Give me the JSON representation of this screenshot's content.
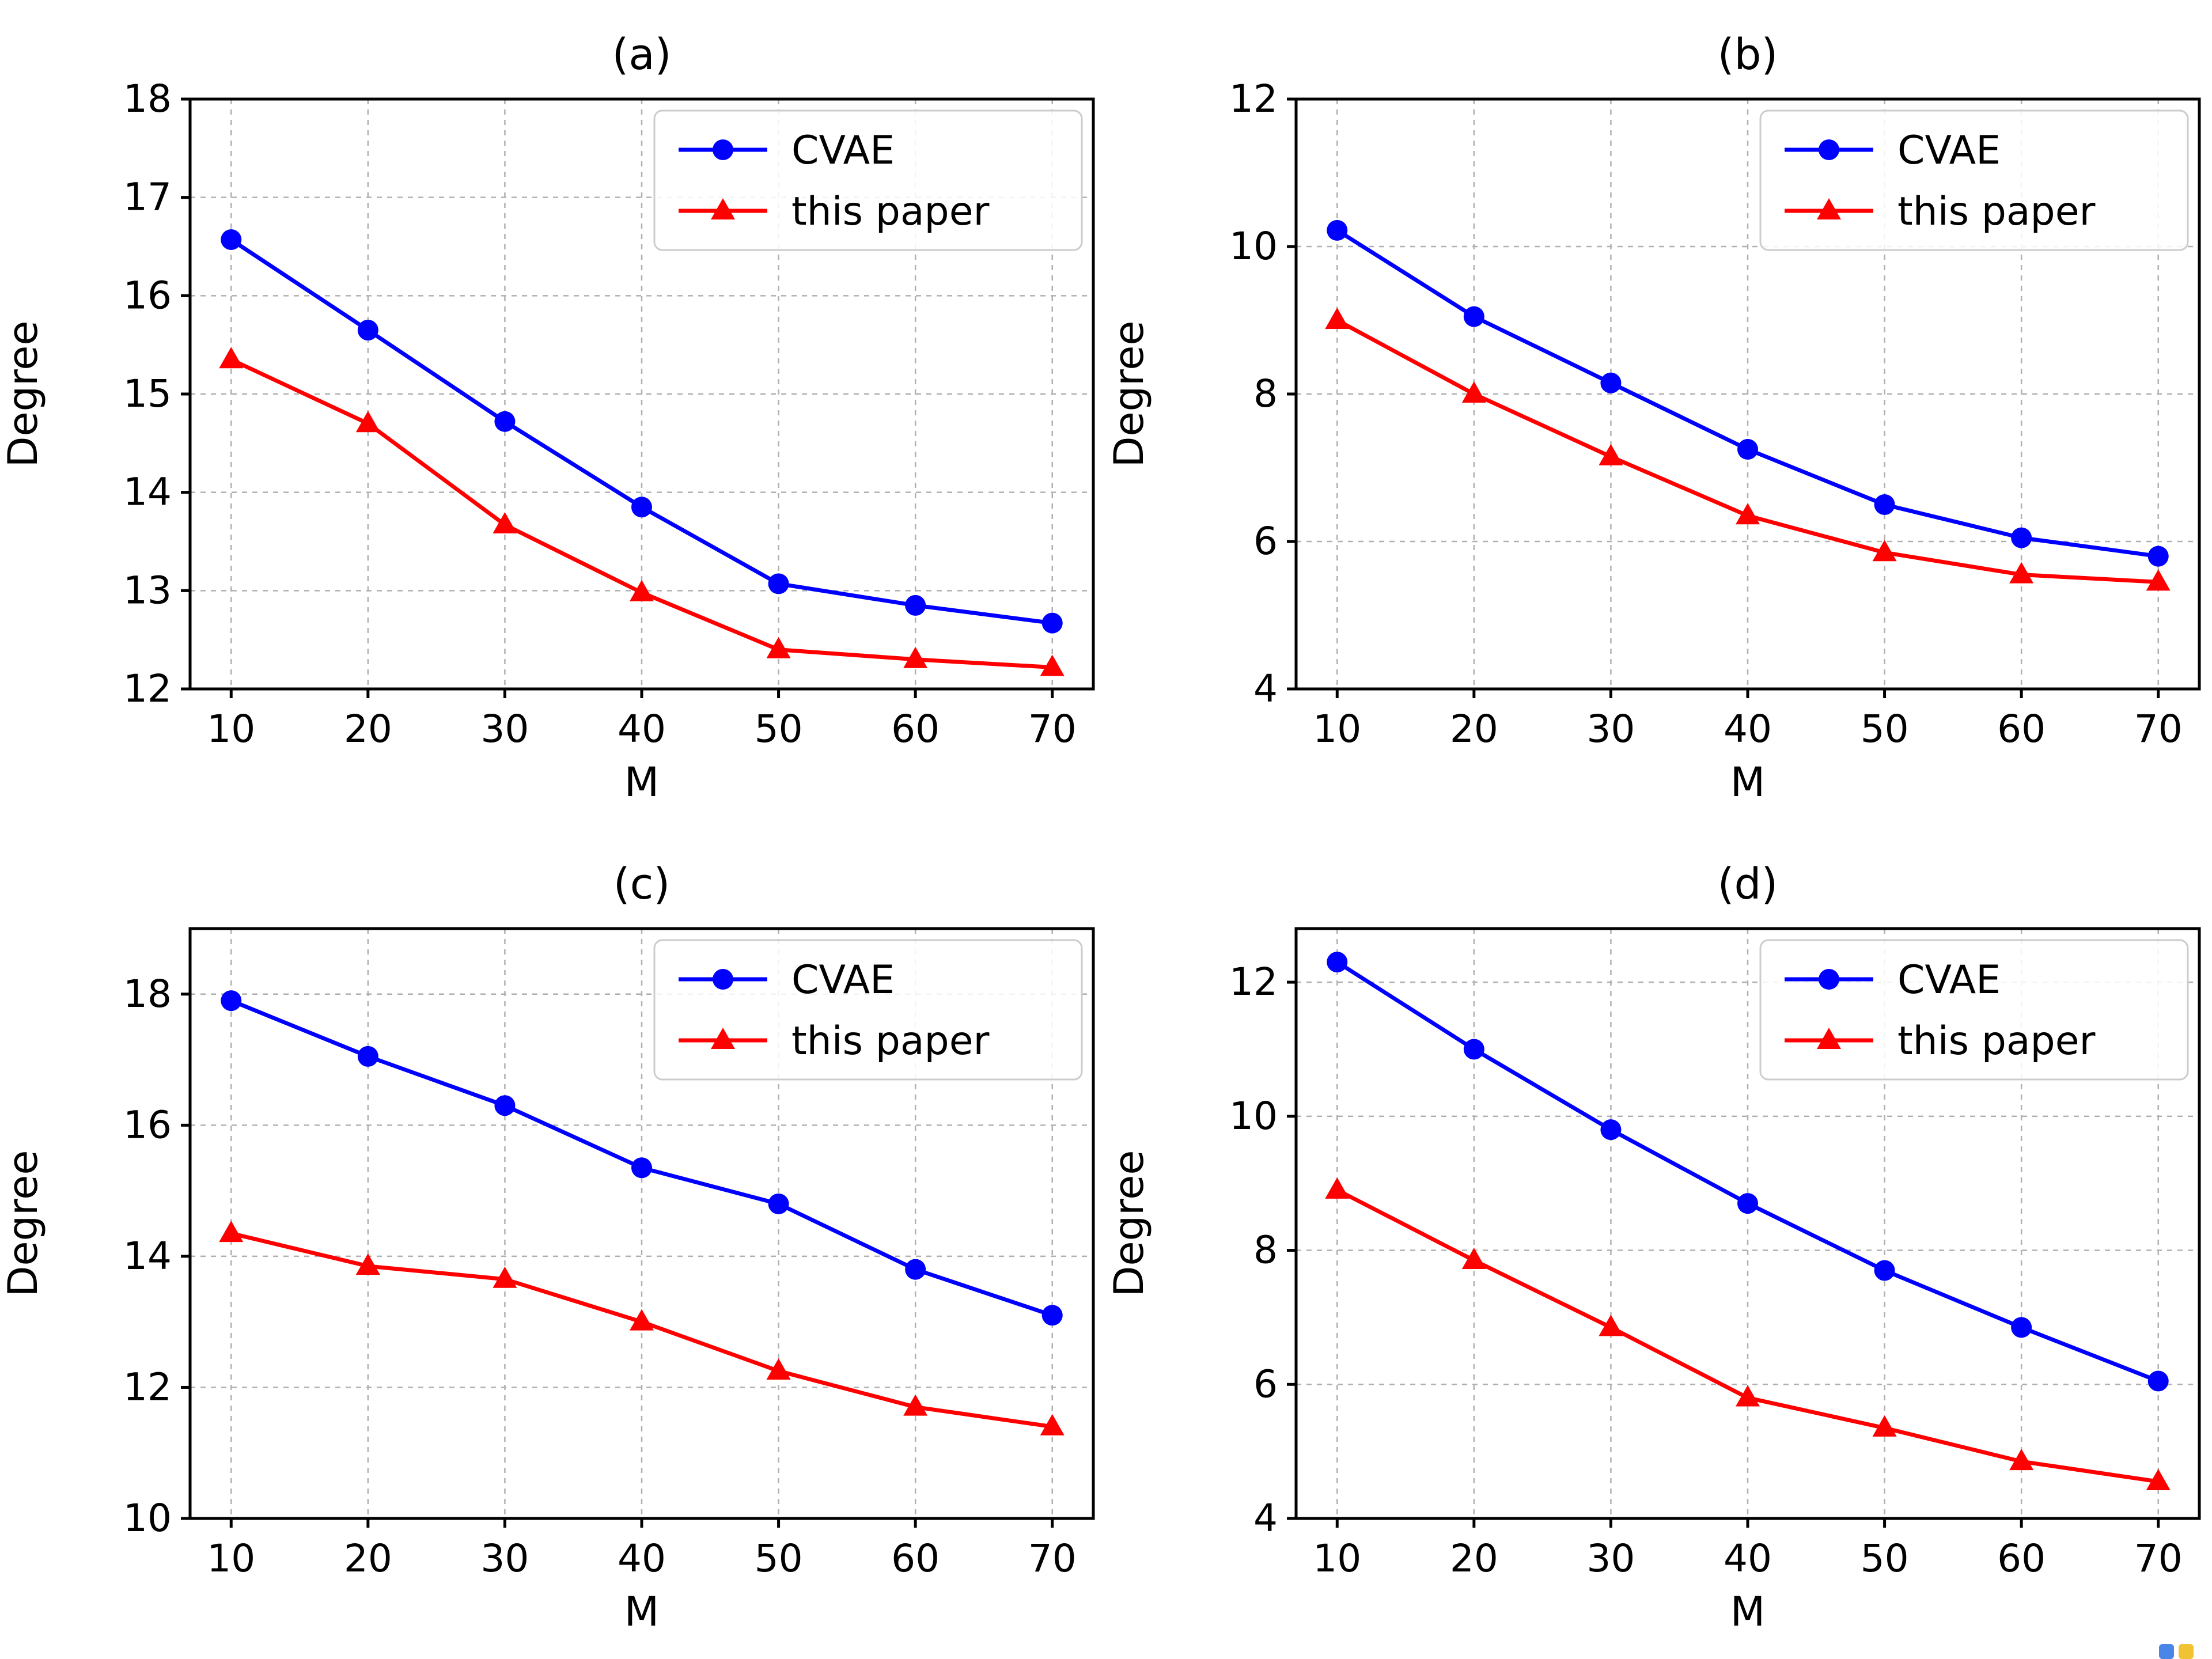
{
  "figure": {
    "background": "#ffffff",
    "grid_color": "#b0b0b0",
    "axis_color": "#000000",
    "text_color": "#000000",
    "legend_border_color": "#cccccc",
    "corner_artifact_colors": [
      "#4a86e8",
      "#f1c232"
    ]
  },
  "chart_data": [
    {
      "id": "a",
      "type": "line",
      "title": "(a)",
      "xlabel": "M",
      "ylabel": "Degree",
      "x": [
        10,
        20,
        30,
        40,
        50,
        60,
        70
      ],
      "xticks": [
        10,
        20,
        30,
        40,
        50,
        60,
        70
      ],
      "xlim": [
        7,
        73
      ],
      "yticks": [
        12,
        13,
        14,
        15,
        16,
        17,
        18
      ],
      "ylim": [
        12,
        18
      ],
      "grid": true,
      "legend_position": "upper right",
      "series": [
        {
          "name": "CVAE",
          "color": "#0000ff",
          "marker": "circle",
          "values": [
            16.57,
            15.65,
            14.72,
            13.85,
            13.07,
            12.85,
            12.67
          ]
        },
        {
          "name": "this paper",
          "color": "#ff0000",
          "marker": "triangle",
          "values": [
            15.35,
            14.7,
            13.67,
            12.98,
            12.4,
            12.3,
            12.22
          ]
        }
      ]
    },
    {
      "id": "b",
      "type": "line",
      "title": "(b)",
      "xlabel": "M",
      "ylabel": "Degree",
      "x": [
        10,
        20,
        30,
        40,
        50,
        60,
        70
      ],
      "xticks": [
        10,
        20,
        30,
        40,
        50,
        60,
        70
      ],
      "xlim": [
        7,
        73
      ],
      "yticks": [
        4,
        6,
        8,
        10,
        12
      ],
      "ylim": [
        4,
        12
      ],
      "grid": true,
      "legend_position": "upper right",
      "series": [
        {
          "name": "CVAE",
          "color": "#0000ff",
          "marker": "circle",
          "values": [
            10.22,
            9.05,
            8.15,
            7.25,
            6.5,
            6.05,
            5.8
          ]
        },
        {
          "name": "this paper",
          "color": "#ff0000",
          "marker": "triangle",
          "values": [
            9.0,
            8.0,
            7.15,
            6.35,
            5.85,
            5.55,
            5.45
          ]
        }
      ]
    },
    {
      "id": "c",
      "type": "line",
      "title": "(c)",
      "xlabel": "M",
      "ylabel": "Degree",
      "x": [
        10,
        20,
        30,
        40,
        50,
        60,
        70
      ],
      "xticks": [
        10,
        20,
        30,
        40,
        50,
        60,
        70
      ],
      "xlim": [
        7,
        73
      ],
      "yticks": [
        10,
        12,
        14,
        16,
        18
      ],
      "ylim": [
        10,
        19
      ],
      "grid": true,
      "legend_position": "upper right",
      "series": [
        {
          "name": "CVAE",
          "color": "#0000ff",
          "marker": "circle",
          "values": [
            17.9,
            17.05,
            16.3,
            15.35,
            14.8,
            13.8,
            13.1
          ]
        },
        {
          "name": "this paper",
          "color": "#ff0000",
          "marker": "triangle",
          "values": [
            14.35,
            13.85,
            13.65,
            13.0,
            12.25,
            11.7,
            11.4
          ]
        }
      ]
    },
    {
      "id": "d",
      "type": "line",
      "title": "(d)",
      "xlabel": "M",
      "ylabel": "Degree",
      "x": [
        10,
        20,
        30,
        40,
        50,
        60,
        70
      ],
      "xticks": [
        10,
        20,
        30,
        40,
        50,
        60,
        70
      ],
      "xlim": [
        7,
        73
      ],
      "yticks": [
        4,
        6,
        8,
        10,
        12
      ],
      "ylim": [
        4,
        12.8
      ],
      "grid": true,
      "legend_position": "upper right",
      "series": [
        {
          "name": "CVAE",
          "color": "#0000ff",
          "marker": "circle",
          "values": [
            12.3,
            11.0,
            9.8,
            8.7,
            7.7,
            6.85,
            6.05
          ]
        },
        {
          "name": "this paper",
          "color": "#ff0000",
          "marker": "triangle",
          "values": [
            8.9,
            7.85,
            6.85,
            5.8,
            5.35,
            4.85,
            4.55
          ]
        }
      ]
    }
  ]
}
